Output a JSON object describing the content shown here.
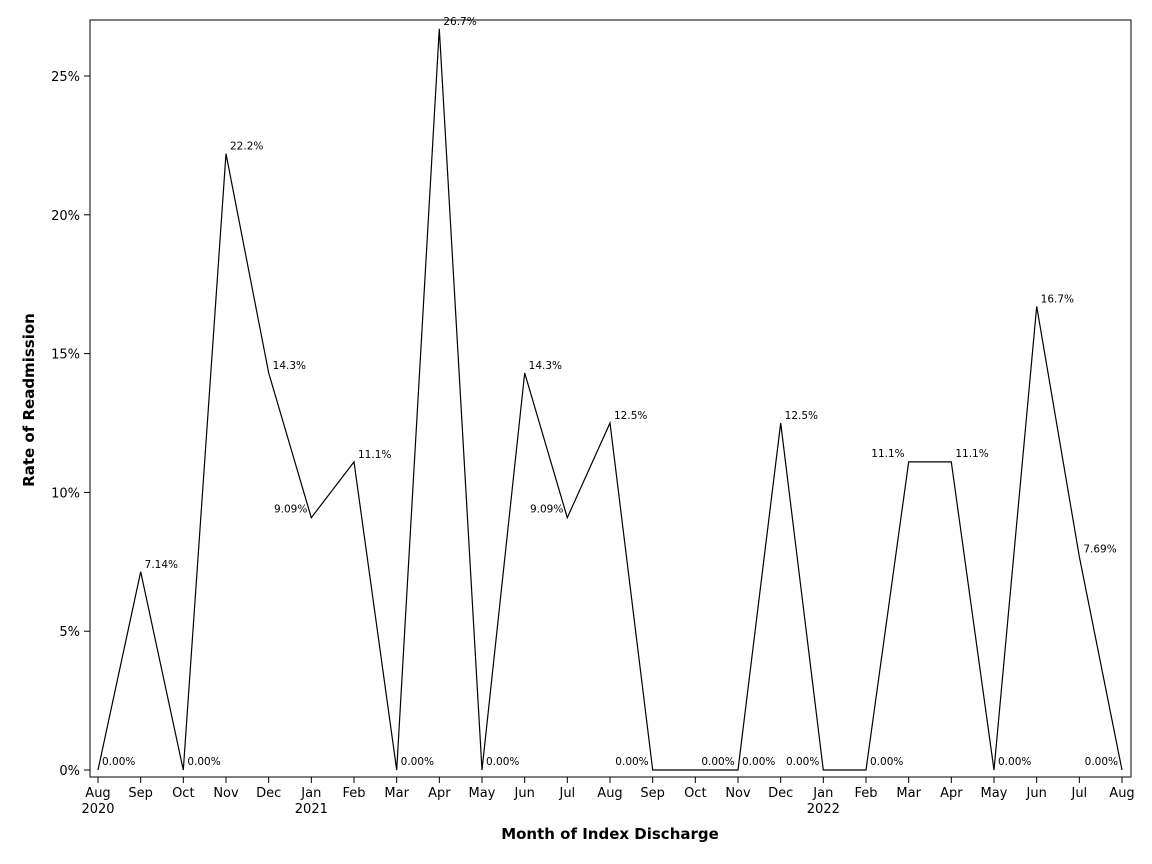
{
  "chart_data": {
    "type": "line",
    "xlabel": "Month of Index Discharge",
    "ylabel": "Rate of Readmission",
    "ylim": [
      0,
      0.27
    ],
    "y_ticks": [
      {
        "value": 0,
        "label": "0%"
      },
      {
        "value": 0.05,
        "label": "5%"
      },
      {
        "value": 0.1,
        "label": "10%"
      },
      {
        "value": 0.15,
        "label": "15%"
      },
      {
        "value": 0.2,
        "label": "20%"
      },
      {
        "value": 0.25,
        "label": "25%"
      }
    ],
    "grid": false,
    "legend": "none",
    "line_color": "#000000",
    "points": [
      {
        "month": "Aug",
        "year": "2020",
        "value": 0.0,
        "label": "0.00%"
      },
      {
        "month": "Sep",
        "year": "",
        "value": 0.0714,
        "label": "7.14%"
      },
      {
        "month": "Oct",
        "year": "",
        "value": 0.0,
        "label": "0.00%"
      },
      {
        "month": "Nov",
        "year": "",
        "value": 0.222,
        "label": "22.2%"
      },
      {
        "month": "Dec",
        "year": "",
        "value": 0.143,
        "label": "14.3%"
      },
      {
        "month": "Jan",
        "year": "2021",
        "value": 0.0909,
        "label": "9.09%"
      },
      {
        "month": "Feb",
        "year": "",
        "value": 0.111,
        "label": "11.1%"
      },
      {
        "month": "Mar",
        "year": "",
        "value": 0.0,
        "label": "0.00%"
      },
      {
        "month": "Apr",
        "year": "",
        "value": 0.267,
        "label": "26.7%"
      },
      {
        "month": "May",
        "year": "",
        "value": 0.0,
        "label": "0.00%"
      },
      {
        "month": "Jun",
        "year": "",
        "value": 0.143,
        "label": "14.3%"
      },
      {
        "month": "Jul",
        "year": "",
        "value": 0.0909,
        "label": "9.09%"
      },
      {
        "month": "Aug",
        "year": "",
        "value": 0.125,
        "label": "12.5%"
      },
      {
        "month": "Sep",
        "year": "",
        "value": 0.0,
        "label": "0.00%"
      },
      {
        "month": "Oct",
        "year": "",
        "value": 0.0,
        "label": "0.00%"
      },
      {
        "month": "Nov",
        "year": "",
        "value": 0.0,
        "label": "0.00%"
      },
      {
        "month": "Dec",
        "year": "",
        "value": 0.125,
        "label": "12.5%"
      },
      {
        "month": "Jan",
        "year": "2022",
        "value": 0.0,
        "label": "0.00%"
      },
      {
        "month": "Feb",
        "year": "",
        "value": 0.0,
        "label": "0.00%"
      },
      {
        "month": "Mar",
        "year": "",
        "value": 0.111,
        "label": "11.1%"
      },
      {
        "month": "Apr",
        "year": "",
        "value": 0.111,
        "label": "11.1%"
      },
      {
        "month": "May",
        "year": "",
        "value": 0.0,
        "label": "0.00%"
      },
      {
        "month": "Jun",
        "year": "",
        "value": 0.167,
        "label": "16.7%"
      },
      {
        "month": "Jul",
        "year": "",
        "value": 0.0769,
        "label": "7.69%"
      },
      {
        "month": "Aug",
        "year": "",
        "value": 0.0,
        "label": "0.00%"
      }
    ]
  }
}
